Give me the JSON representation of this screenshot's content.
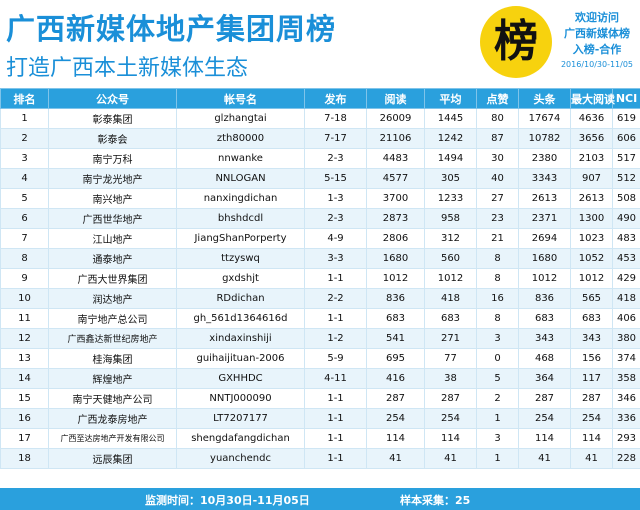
{
  "header": {
    "title": "广西新媒体地产集团周榜",
    "subtitle": "打造广西本土新媒体生态",
    "badge_char": "榜",
    "slogan_line1": "欢迎访问",
    "slogan_line2": "广西新媒体榜",
    "slogan_line3": "入榜-合作",
    "date_range": "2016/10/30-11/05"
  },
  "table": {
    "columns": [
      "排名",
      "公众号",
      "帐号名",
      "发布",
      "阅读",
      "平均",
      "点赞",
      "头条",
      "最大阅读",
      "NCI"
    ],
    "rows": [
      [
        "1",
        "彰泰集团",
        "glzhangtai",
        "7-18",
        "26009",
        "1445",
        "80",
        "17674",
        "4636",
        "619"
      ],
      [
        "2",
        "彰泰会",
        "zth80000",
        "7-17",
        "21106",
        "1242",
        "87",
        "10782",
        "3656",
        "606"
      ],
      [
        "3",
        "南宁万科",
        "nnwanke",
        "2-3",
        "4483",
        "1494",
        "30",
        "2380",
        "2103",
        "517"
      ],
      [
        "4",
        "南宁龙光地产",
        "NNLOGAN",
        "5-15",
        "4577",
        "305",
        "40",
        "3343",
        "907",
        "512"
      ],
      [
        "5",
        "南兴地产",
        "nanxingdichan",
        "1-3",
        "3700",
        "1233",
        "27",
        "2613",
        "2613",
        "508"
      ],
      [
        "6",
        "广西世华地产",
        "bhshdcdl",
        "2-3",
        "2873",
        "958",
        "23",
        "2371",
        "1300",
        "490"
      ],
      [
        "7",
        "江山地产",
        "JiangShanPorperty",
        "4-9",
        "2806",
        "312",
        "21",
        "2694",
        "1023",
        "483"
      ],
      [
        "8",
        "通泰地产",
        "ttzyswq",
        "3-3",
        "1680",
        "560",
        "8",
        "1680",
        "1052",
        "453"
      ],
      [
        "9",
        "广西大世界集团",
        "gxdshjt",
        "1-1",
        "1012",
        "1012",
        "8",
        "1012",
        "1012",
        "429"
      ],
      [
        "10",
        "润达地产",
        "RDdichan",
        "2-2",
        "836",
        "418",
        "16",
        "836",
        "565",
        "418"
      ],
      [
        "11",
        "南宁地产总公司",
        "gh_561d1364616d",
        "1-1",
        "683",
        "683",
        "8",
        "683",
        "683",
        "406"
      ],
      [
        "12",
        "广西鑫达新世纪房地产",
        "xindaxinshiji",
        "1-2",
        "541",
        "271",
        "3",
        "343",
        "343",
        "380"
      ],
      [
        "13",
        "桂海集团",
        "guihaijituan-2006",
        "5-9",
        "695",
        "77",
        "0",
        "468",
        "156",
        "374"
      ],
      [
        "14",
        "辉煌地产",
        "GXHHDC",
        "4-11",
        "416",
        "38",
        "5",
        "364",
        "117",
        "358"
      ],
      [
        "15",
        "南宁天健地产公司",
        "NNTJ000090",
        "1-1",
        "287",
        "287",
        "2",
        "287",
        "287",
        "346"
      ],
      [
        "16",
        "广西龙泰房地产",
        "LT7207177",
        "1-1",
        "254",
        "254",
        "1",
        "254",
        "254",
        "336"
      ],
      [
        "17",
        "广西至达房地产开发有限公司",
        "shengdafangdichan",
        "1-1",
        "114",
        "114",
        "3",
        "114",
        "114",
        "293"
      ],
      [
        "18",
        "远辰集团",
        "yuanchendc",
        "1-1",
        "41",
        "41",
        "1",
        "41",
        "41",
        "228"
      ]
    ]
  },
  "footer": {
    "period": "监测时间：10月30日-11月05日",
    "sample": "样本采集：25"
  }
}
